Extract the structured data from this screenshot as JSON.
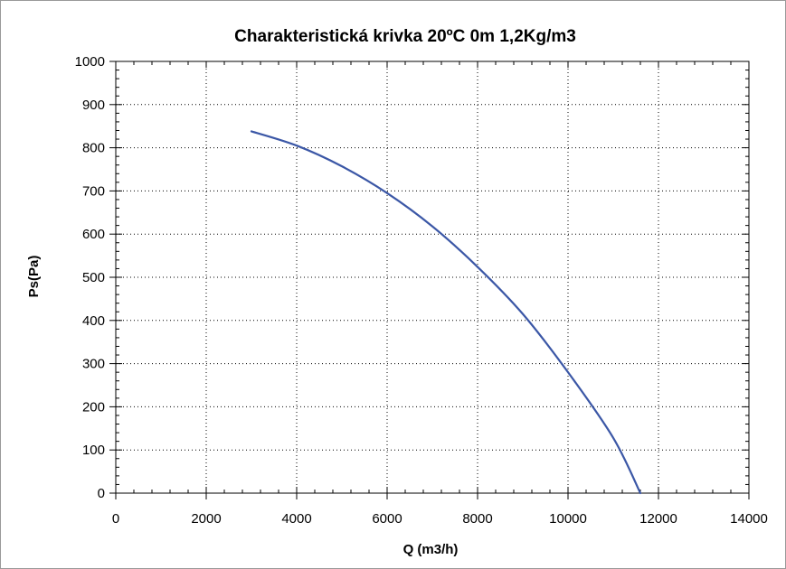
{
  "chart_data": {
    "type": "line",
    "title": "Charakteristická krivka 20ºC 0m 1,2Kg/m3",
    "xlabel": "Q (m3/h)",
    "ylabel": "Ps(Pa)",
    "xlim": [
      0,
      14000
    ],
    "ylim": [
      0,
      1000
    ],
    "x_ticks": [
      0,
      2000,
      4000,
      6000,
      8000,
      10000,
      12000,
      14000
    ],
    "x_tick_labels": [
      "0",
      "2000",
      "4000",
      "6000",
      "8000",
      "10000",
      "12000",
      "14000"
    ],
    "y_ticks": [
      0,
      100,
      200,
      300,
      400,
      500,
      600,
      700,
      800,
      900,
      1000
    ],
    "y_tick_labels": [
      "0",
      "100",
      "200",
      "300",
      "400",
      "500",
      "600",
      "700",
      "800",
      "900",
      "1000"
    ],
    "grid": true,
    "grid_style": "dotted",
    "series": [
      {
        "color": "#3b57a6",
        "x": [
          3000,
          4000,
          5000,
          6000,
          7000,
          8000,
          9000,
          10000,
          11000,
          11600
        ],
        "y": [
          838,
          805,
          757,
          695,
          618,
          524,
          415,
          280,
          128,
          0
        ]
      }
    ]
  },
  "colors": {
    "background": "#ffffff",
    "frame": "#000000",
    "grid": "#000000",
    "line": "#3b57a6"
  }
}
